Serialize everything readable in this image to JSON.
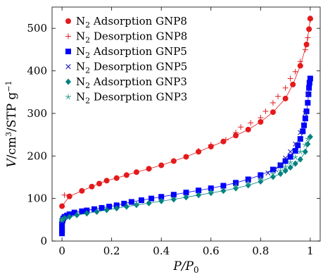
{
  "chart_data": {
    "type": "scatter",
    "xlabel": "P/P0",
    "ylabel": "V/cm3/STP g−1",
    "xlim": [
      -0.04,
      1.04
    ],
    "ylim": [
      0,
      550
    ],
    "xticks": [
      0,
      0.2,
      0.4,
      0.6,
      0.8,
      1
    ],
    "xtick_labels": [
      "0",
      "0.2",
      "0.4",
      "0.6",
      "0.8",
      "1"
    ],
    "yticks": [
      0,
      100,
      200,
      300,
      400,
      500
    ],
    "ytick_labels": [
      "0",
      "100",
      "200",
      "300",
      "400",
      "500"
    ],
    "legend_position": "top-left",
    "grid": false,
    "series": [
      {
        "name": "N2 Adsorption GNP8",
        "sub": "2",
        "prefix": "N",
        "suffix": "Adsorption GNP8",
        "marker": "circle",
        "color": "#e41a1c",
        "line": true,
        "x": [
          0.0,
          0.03,
          0.08,
          0.12,
          0.15,
          0.18,
          0.22,
          0.26,
          0.3,
          0.35,
          0.4,
          0.45,
          0.5,
          0.55,
          0.6,
          0.65,
          0.7,
          0.75,
          0.8,
          0.85,
          0.9,
          0.93,
          0.96,
          0.985,
          0.995,
          1.0
        ],
        "y": [
          82,
          105,
          118,
          128,
          135,
          142,
          148,
          155,
          162,
          170,
          178,
          188,
          198,
          210,
          222,
          234,
          248,
          262,
          280,
          303,
          335,
          368,
          412,
          462,
          498,
          523
        ]
      },
      {
        "name": "N2 Desorption GNP8",
        "sub": "2",
        "prefix": "N",
        "suffix": "Desorption GNP8",
        "marker": "plus",
        "color": "#e41a1c",
        "line": false,
        "x": [
          0.01,
          0.55,
          0.6,
          0.66,
          0.7,
          0.72,
          0.76,
          0.8,
          0.82,
          0.85,
          0.87,
          0.9,
          0.92,
          0.94,
          0.96,
          0.98,
          0.99,
          1.0
        ],
        "y": [
          108,
          212,
          226,
          238,
          255,
          268,
          278,
          290,
          305,
          325,
          340,
          360,
          382,
          398,
          422,
          450,
          478,
          520
        ]
      },
      {
        "name": "N2 Adsorption GNP5",
        "sub": "2",
        "prefix": "N",
        "suffix": "Adsorption GNP5",
        "marker": "square",
        "color": "#0000ff",
        "line": true,
        "x": [
          0.0,
          0.0,
          0.0,
          0.0,
          0.002,
          0.005,
          0.01,
          0.02,
          0.03,
          0.05,
          0.08,
          0.1,
          0.13,
          0.16,
          0.19,
          0.22,
          0.25,
          0.28,
          0.32,
          0.36,
          0.4,
          0.45,
          0.5,
          0.55,
          0.6,
          0.65,
          0.7,
          0.75,
          0.8,
          0.85,
          0.88,
          0.9,
          0.92,
          0.94,
          0.95,
          0.96,
          0.97,
          0.975,
          0.98,
          0.985,
          0.99,
          0.993,
          0.995,
          0.997,
          1.0
        ],
        "y": [
          18,
          25,
          32,
          40,
          48,
          53,
          57,
          60,
          63,
          67,
          70,
          72,
          75,
          78,
          81,
          84,
          88,
          92,
          96,
          100,
          104,
          109,
          114,
          119,
          124,
          130,
          137,
          145,
          155,
          168,
          178,
          188,
          198,
          212,
          225,
          240,
          258,
          272,
          288,
          305,
          325,
          345,
          360,
          372,
          382
        ]
      },
      {
        "name": "N2 Desorption GNP5",
        "sub": "2",
        "prefix": "N",
        "suffix": "Desorption GNP5",
        "marker": "cross",
        "color": "#1f1fbf",
        "line": false,
        "x": [
          0.0,
          0.7,
          0.75,
          0.8,
          0.83,
          0.86,
          0.88,
          0.9,
          0.92,
          0.94,
          0.96,
          0.98,
          0.99
        ],
        "y": [
          48,
          135,
          142,
          150,
          160,
          168,
          180,
          195,
          210,
          228,
          255,
          300,
          345
        ]
      },
      {
        "name": "N2 Adsorption GNP3",
        "sub": "2",
        "prefix": "N",
        "suffix": "Adsorption GNP3",
        "marker": "diamond",
        "color": "#008080",
        "line": true,
        "x": [
          0.0,
          0.01,
          0.03,
          0.06,
          0.1,
          0.14,
          0.18,
          0.22,
          0.26,
          0.3,
          0.35,
          0.4,
          0.45,
          0.5,
          0.55,
          0.6,
          0.65,
          0.7,
          0.75,
          0.8,
          0.85,
          0.88,
          0.9,
          0.92,
          0.94,
          0.96,
          0.98,
          0.99,
          1.0
        ],
        "y": [
          50,
          54,
          57,
          61,
          65,
          69,
          73,
          77,
          81,
          85,
          89,
          94,
          98,
          103,
          108,
          113,
          118,
          124,
          131,
          140,
          151,
          158,
          165,
          173,
          182,
          192,
          210,
          228,
          245
        ]
      },
      {
        "name": "N2 Desorption GNP3",
        "sub": "2",
        "prefix": "N",
        "suffix": "Desorption GNP3",
        "marker": "star",
        "color": "#2a9d8f",
        "line": false,
        "x": [
          0.0,
          0.3,
          0.6,
          0.7,
          0.75,
          0.8,
          0.85,
          0.88,
          0.9,
          0.92,
          0.94,
          0.96,
          0.98,
          0.99
        ],
        "y": [
          50,
          87,
          116,
          128,
          135,
          145,
          158,
          166,
          175,
          185,
          197,
          210,
          226,
          240
        ]
      }
    ]
  }
}
